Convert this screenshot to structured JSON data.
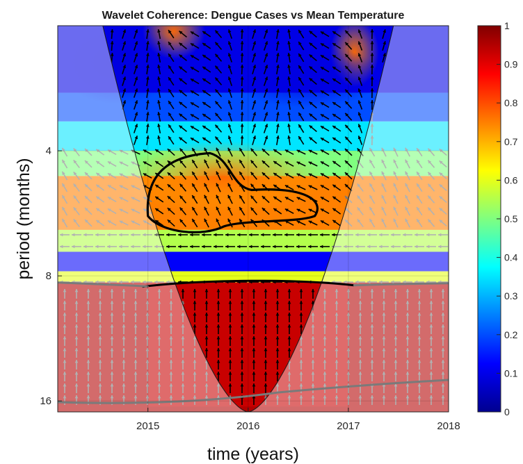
{
  "chart_data": {
    "type": "heatmap",
    "title": "Wavelet Coherence: Dengue Cases vs Mean Temperature",
    "xlabel": "time (years)",
    "ylabel": "period (months)",
    "x_ticks": [
      "2015",
      "2016",
      "2017",
      "2018"
    ],
    "x_tick_values": [
      2015,
      2016,
      2017,
      2018
    ],
    "xlim": [
      2014.1,
      2018.0
    ],
    "y_ticks": [
      "4",
      "8",
      "16"
    ],
    "y_tick_values": [
      4,
      8,
      16
    ],
    "ylim": [
      2,
      17
    ],
    "y_scale": "log2",
    "colorbar": {
      "ticks": [
        "0",
        "0.1",
        "0.2",
        "0.3",
        "0.4",
        "0.5",
        "0.6",
        "0.7",
        "0.8",
        "0.9",
        "1"
      ],
      "range": [
        0,
        1
      ],
      "colormap": "jet"
    },
    "coherence_bands": [
      {
        "period_from": 2.0,
        "period_to": 2.9,
        "coherence": 0.1
      },
      {
        "period_from": 2.9,
        "period_to": 3.4,
        "coherence": 0.2
      },
      {
        "period_from": 3.4,
        "period_to": 4.0,
        "coherence": 0.35
      },
      {
        "period_from": 4.0,
        "period_to": 4.6,
        "coherence": 0.5
      },
      {
        "period_from": 4.6,
        "period_to": 6.2,
        "coherence": 0.75
      },
      {
        "period_from": 6.2,
        "period_to": 7.0,
        "coherence": 0.55
      },
      {
        "period_from": 7.0,
        "period_to": 7.8,
        "coherence": 0.12
      },
      {
        "period_from": 7.8,
        "period_to": 8.3,
        "coherence": 0.6
      },
      {
        "period_from": 8.3,
        "period_to": 17.0,
        "coherence": 0.95
      }
    ],
    "significant_regions": [
      {
        "label": "period 4-6 months",
        "time_range": [
          2015.0,
          2016.7
        ],
        "period_range": [
          4.1,
          6.2
        ]
      },
      {
        "label": "period 8-16 months",
        "time_range": [
          2015.0,
          2017.0
        ],
        "period_range": [
          8.3,
          16.5
        ]
      }
    ],
    "colors": {
      "cone_of_influence_mask": "#ffffff",
      "significance_contour": "#000000",
      "arrows_inside": "#000000",
      "arrows_outside": "#7a7a7a"
    }
  }
}
